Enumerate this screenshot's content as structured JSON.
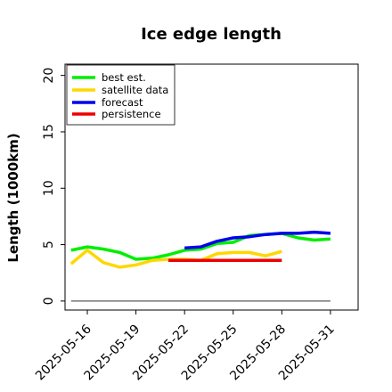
{
  "chart_data": {
    "type": "line",
    "title": "Ice edge length",
    "ylabel": "Length (1000km)",
    "xlabel": "",
    "ylim": [
      -0.8,
      21
    ],
    "yticks": [
      0,
      5,
      10,
      15,
      20
    ],
    "xlim": [
      "2025-05-14T15:00",
      "2025-06-01T17:00"
    ],
    "xticks": [
      "2025-05-16",
      "2025-05-19",
      "2025-05-22",
      "2025-05-25",
      "2025-05-28",
      "2025-05-31"
    ],
    "highlight_tick": "2025-05-22",
    "highlight_color": "#228B22",
    "legend_position": "upper-left",
    "series": [
      {
        "name": "best est.",
        "color": "#00ee00",
        "x": [
          "2025-05-15",
          "2025-05-16",
          "2025-05-17",
          "2025-05-18",
          "2025-05-19",
          "2025-05-20",
          "2025-05-21",
          "2025-05-22",
          "2025-05-23",
          "2025-05-24",
          "2025-05-25",
          "2025-05-26",
          "2025-05-27",
          "2025-05-28",
          "2025-05-29",
          "2025-05-30",
          "2025-05-31"
        ],
        "y": [
          4.5,
          4.8,
          4.6,
          4.3,
          3.7,
          3.8,
          4.1,
          4.5,
          4.6,
          5.1,
          5.2,
          5.8,
          5.9,
          6.0,
          5.6,
          5.4,
          5.5
        ]
      },
      {
        "name": "satellite data",
        "color": "#ffd700",
        "x": [
          "2025-05-15",
          "2025-05-16",
          "2025-05-17",
          "2025-05-18",
          "2025-05-19",
          "2025-05-20",
          "2025-05-21",
          "2025-05-22",
          "2025-05-23",
          "2025-05-24",
          "2025-05-25",
          "2025-05-26",
          "2025-05-27",
          "2025-05-28"
        ],
        "y": [
          3.3,
          4.5,
          3.4,
          3.0,
          3.2,
          3.6,
          3.7,
          3.7,
          3.6,
          4.2,
          4.3,
          4.3,
          4.0,
          4.4
        ]
      },
      {
        "name": "forecast",
        "color": "#0000ee",
        "x": [
          "2025-05-22",
          "2025-05-23",
          "2025-05-24",
          "2025-05-25",
          "2025-05-26",
          "2025-05-27",
          "2025-05-28",
          "2025-05-29",
          "2025-05-30",
          "2025-05-31"
        ],
        "y": [
          4.7,
          4.8,
          5.3,
          5.6,
          5.7,
          5.9,
          6.0,
          6.0,
          6.1,
          6.0
        ]
      },
      {
        "name": "persistence",
        "color": "#ee0000",
        "x": [
          "2025-05-21",
          "2025-05-28"
        ],
        "y": [
          3.6,
          3.6
        ]
      },
      {
        "name": "",
        "color": "#777777",
        "x": [
          "2025-05-15",
          "2025-05-31"
        ],
        "y": [
          0,
          0
        ]
      }
    ]
  }
}
